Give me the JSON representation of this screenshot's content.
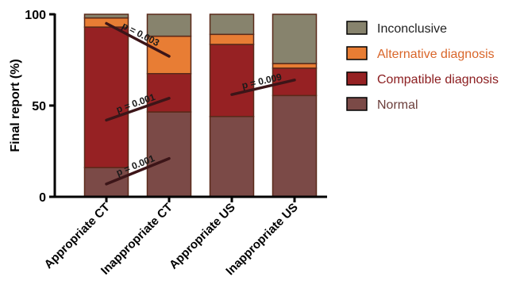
{
  "chart_data": {
    "type": "bar",
    "stacked": true,
    "ylabel": "Final report (%)",
    "xlabel": "",
    "ylim": [
      0,
      100
    ],
    "yticks": [
      0,
      50,
      100
    ],
    "categories": [
      "Appropriate CT",
      "Inappropriate CT",
      "Appropriate US",
      "Inappropriate US"
    ],
    "series": [
      {
        "name": "Normal",
        "color": "#7b4a47",
        "values": [
          16,
          46.5,
          44,
          55.5
        ]
      },
      {
        "name": "Compatible diagnosis",
        "color": "#962123",
        "values": [
          77,
          21,
          39.5,
          15
        ]
      },
      {
        "name": "Alternative diagnosis",
        "color": "#e87d34",
        "values": [
          5,
          20.5,
          5.5,
          2.5
        ]
      },
      {
        "name": "Inconclusive",
        "color": "#87836d",
        "values": [
          2,
          12,
          11,
          27
        ]
      }
    ],
    "legend_position": "right",
    "legend_order": [
      "Inconclusive",
      "Alternative diagnosis",
      "Compatible diagnosis",
      "Normal"
    ],
    "legend_text_colors": {
      "Inconclusive": "#222222",
      "Alternative diagnosis": "#d9662a",
      "Compatible diagnosis": "#8c1e20",
      "Normal": "#6b3e3b"
    },
    "annotations": [
      {
        "text": "p = 0.003",
        "from": [
          1,
          95
        ],
        "to": [
          2,
          77
        ]
      },
      {
        "text": "p = 0.001",
        "from": [
          1,
          42
        ],
        "to": [
          2,
          54
        ]
      },
      {
        "text": "p = 0.001",
        "from": [
          1,
          7
        ],
        "to": [
          2,
          21
        ]
      },
      {
        "text": "p = 0.009",
        "from": [
          3,
          56
        ],
        "to": [
          4,
          64
        ]
      }
    ]
  }
}
